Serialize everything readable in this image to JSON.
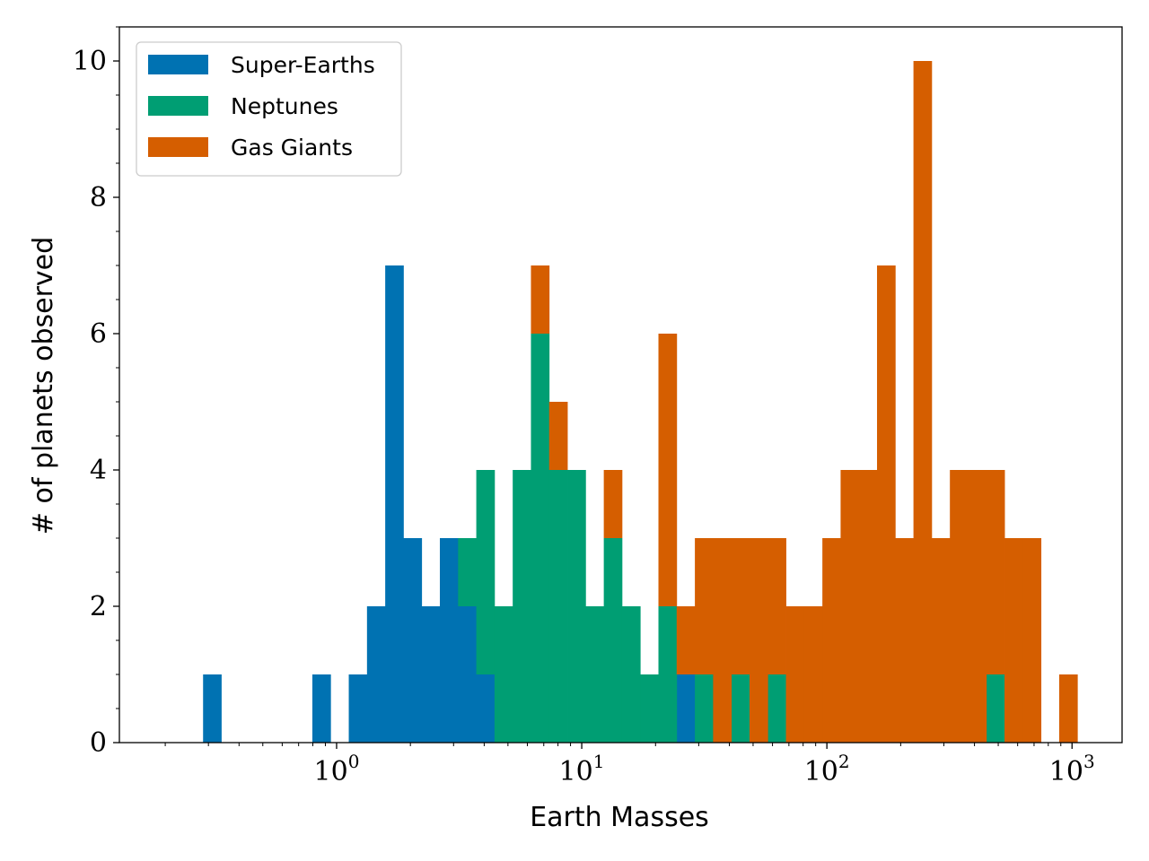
{
  "chart_data": {
    "type": "bar",
    "stacked": true,
    "x_scale": "log",
    "xlabel": "Earth Masses",
    "ylabel": "# of planets observed",
    "xlim": [
      0.13,
      1600
    ],
    "ylim": [
      0,
      10.5
    ],
    "x_ticks": [
      {
        "base": "10",
        "exp": "0",
        "value": 1
      },
      {
        "base": "10",
        "exp": "1",
        "value": 10
      },
      {
        "base": "10",
        "exp": "2",
        "value": 100
      },
      {
        "base": "10",
        "exp": "3",
        "value": 1000
      }
    ],
    "y_ticks": [
      0,
      2,
      4,
      6,
      8,
      10
    ],
    "legend_position": "top-left",
    "grid": false,
    "bin_edges": [
      0.2853,
      0.3385,
      0.4017,
      0.4766,
      0.5656,
      0.6711,
      0.7963,
      0.9449,
      1.1212,
      1.3305,
      1.5787,
      1.8733,
      2.2228,
      2.6376,
      3.1298,
      3.7138,
      4.4068,
      5.2291,
      6.2049,
      7.3627,
      8.7366,
      10.3669,
      12.3013,
      14.5968,
      17.3206,
      20.5525,
      24.3876,
      28.9384,
      34.3383,
      40.746,
      48.3493,
      57.3712,
      68.0766,
      80.7798,
      95.8534,
      113.7398,
      134.9636,
      160.1478,
      190.0314,
      225.4912,
      267.5677,
      317.4958,
      376.7407,
      447.0407,
      530.4584,
      629.4422,
      746.8969,
      886.2691,
      1051.6485
    ],
    "series": [
      {
        "name": "Super-Earths",
        "color": "#0072b2",
        "values": [
          1,
          0,
          0,
          0,
          0,
          0,
          1,
          0,
          1,
          2,
          7,
          3,
          2,
          3,
          2,
          1,
          0,
          0,
          0,
          0,
          0,
          0,
          0,
          0,
          0,
          0,
          1,
          0,
          0,
          0,
          0,
          0,
          0,
          0,
          0,
          0,
          0,
          0,
          0,
          0,
          0,
          0,
          0,
          0,
          0,
          0,
          0,
          0
        ]
      },
      {
        "name": "Neptunes",
        "color": "#009e73",
        "values": [
          0,
          0,
          0,
          0,
          0,
          0,
          0,
          0,
          0,
          0,
          0,
          0,
          0,
          0,
          1,
          3,
          2,
          4,
          6,
          4,
          4,
          2,
          3,
          2,
          1,
          2,
          0,
          1,
          0,
          1,
          0,
          1,
          0,
          0,
          0,
          0,
          0,
          0,
          0,
          0,
          0,
          0,
          0,
          1,
          0,
          0,
          0,
          0
        ]
      },
      {
        "name": "Gas Giants",
        "color": "#d55e00",
        "values": [
          0,
          0,
          0,
          0,
          0,
          0,
          0,
          0,
          0,
          0,
          0,
          0,
          0,
          0,
          0,
          0,
          0,
          0,
          1,
          1,
          0,
          0,
          1,
          0,
          0,
          4,
          1,
          2,
          3,
          2,
          3,
          2,
          2,
          2,
          3,
          4,
          4,
          7,
          3,
          10,
          3,
          4,
          4,
          3,
          3,
          3,
          0,
          1
        ]
      }
    ]
  }
}
